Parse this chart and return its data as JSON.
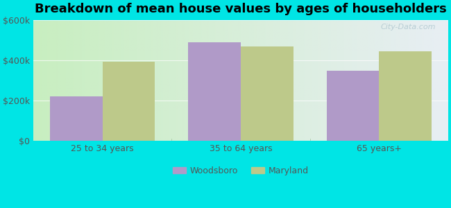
{
  "title": "Breakdown of mean house values by ages of householders",
  "categories": [
    "25 to 34 years",
    "35 to 64 years",
    "65 years+"
  ],
  "woodsboro_values": [
    220000,
    490000,
    350000
  ],
  "maryland_values": [
    395000,
    470000,
    445000
  ],
  "woodsboro_color": "#b09ac8",
  "maryland_color": "#bdc98a",
  "background_color": "#00e5e5",
  "plot_bg_left": "#c8eec0",
  "plot_bg_right": "#e8eef4",
  "ylim": [
    0,
    600000
  ],
  "yticks": [
    0,
    200000,
    400000,
    600000
  ],
  "ytick_labels": [
    "$0",
    "$200k",
    "$400k",
    "$600k"
  ],
  "legend_labels": [
    "Woodsboro",
    "Maryland"
  ],
  "bar_width": 0.38,
  "title_fontsize": 13,
  "watermark": "City-Data.com"
}
